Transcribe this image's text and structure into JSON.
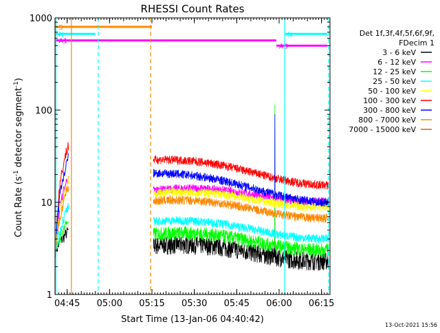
{
  "chart_data": {
    "type": "line",
    "title": "RHESSI Count Rates",
    "xlabel": "Start Time (13-Jan-06 04:40:42)",
    "ylabel_main": "Count Rate (s",
    "ylabel_sup": "-1",
    "ylabel_tail": " detector segment",
    "ylabel_end": ")",
    "y_scale": "log",
    "ylim": [
      1,
      1000
    ],
    "xlim": [
      "04:40:42",
      "06:18:00"
    ],
    "x_ticks": [
      "04:45",
      "05:00",
      "05:15",
      "05:30",
      "05:45",
      "06:00",
      "06:15"
    ],
    "y_ticks": [
      "1",
      "10",
      "100",
      "1000"
    ],
    "legend_title_lines": [
      "Det 1f,3f,4f,5f,6f,9f,",
      "FDecim 1"
    ],
    "legend_position": "right",
    "series": [
      {
        "name": "3 - 6 keV",
        "color": "#000000",
        "level_start": 3.3,
        "level_end": 2.6
      },
      {
        "name": "6 - 12 keV",
        "color": "#ff00ff",
        "level_start": 13.0,
        "level_end": 11.5
      },
      {
        "name": "12 - 25 keV",
        "color": "#00ff00",
        "level_start": 4.4,
        "level_end": 3.4
      },
      {
        "name": "25 - 50 keV",
        "color": "#00ffff",
        "level_start": 6.0,
        "level_end": 4.5
      },
      {
        "name": "50 - 100 keV",
        "color": "#ffff00",
        "level_start": 12.0,
        "level_end": 10.0
      },
      {
        "name": "100 - 300 keV",
        "color": "#ff0000",
        "level_start": 28.0,
        "level_end": 17.0
      },
      {
        "name": "300 - 800 keV",
        "color": "#0000ff",
        "level_start": 20.0,
        "level_end": 11.0
      },
      {
        "name": "800 - 7000 keV",
        "color": "#ff8800",
        "level_start": 10.0,
        "level_end": 7.5
      },
      {
        "name": "7000 - 15000 keV",
        "color": "#cc6600",
        "level_start": null,
        "level_end": null
      }
    ],
    "segments": [
      {
        "start": "04:41:00",
        "end": "04:45:30"
      },
      {
        "start": "05:15:30",
        "end": "06:17:30"
      }
    ],
    "flag_bars": [
      {
        "label": "S",
        "color": "#ff8800",
        "start": "04:41:00",
        "end": "05:15:00",
        "y": 800
      },
      {
        "label": "N",
        "color": "#00ffff",
        "start": "04:41:00",
        "end": "04:55:00",
        "y": 670
      },
      {
        "label": "N",
        "color": "#00ffff",
        "start": "06:02:00",
        "end": "06:17:00",
        "y": 670
      },
      {
        "label": "A1",
        "color": "#ff00ff",
        "start": "04:41:00",
        "end": "05:59:00",
        "y": 570
      },
      {
        "label": "A3",
        "color": "#ff00ff",
        "start": "05:59:00",
        "end": "06:17:00",
        "y": 500
      }
    ],
    "vlines": [
      {
        "time": "04:41:00",
        "color": "#00ffff",
        "style": "solid"
      },
      {
        "time": "04:46:30",
        "color": "#ff8800",
        "style": "solid"
      },
      {
        "time": "04:56:00",
        "color": "#00ffff",
        "style": "dashed"
      },
      {
        "time": "05:14:30",
        "color": "#ff8800",
        "style": "dashed"
      },
      {
        "time": "06:02:00",
        "color": "#00ffff",
        "style": "solid"
      },
      {
        "time": "06:17:30",
        "color": "#00ffff",
        "style": "dashed"
      }
    ],
    "spike": {
      "time": "05:58:30",
      "peaks": {
        "3 - 6 keV": 15,
        "12 - 25 keV": 115,
        "300 - 800 keV": 90
      }
    }
  },
  "footer": {
    "timestamp": "13-Oct-2021 15:56"
  }
}
